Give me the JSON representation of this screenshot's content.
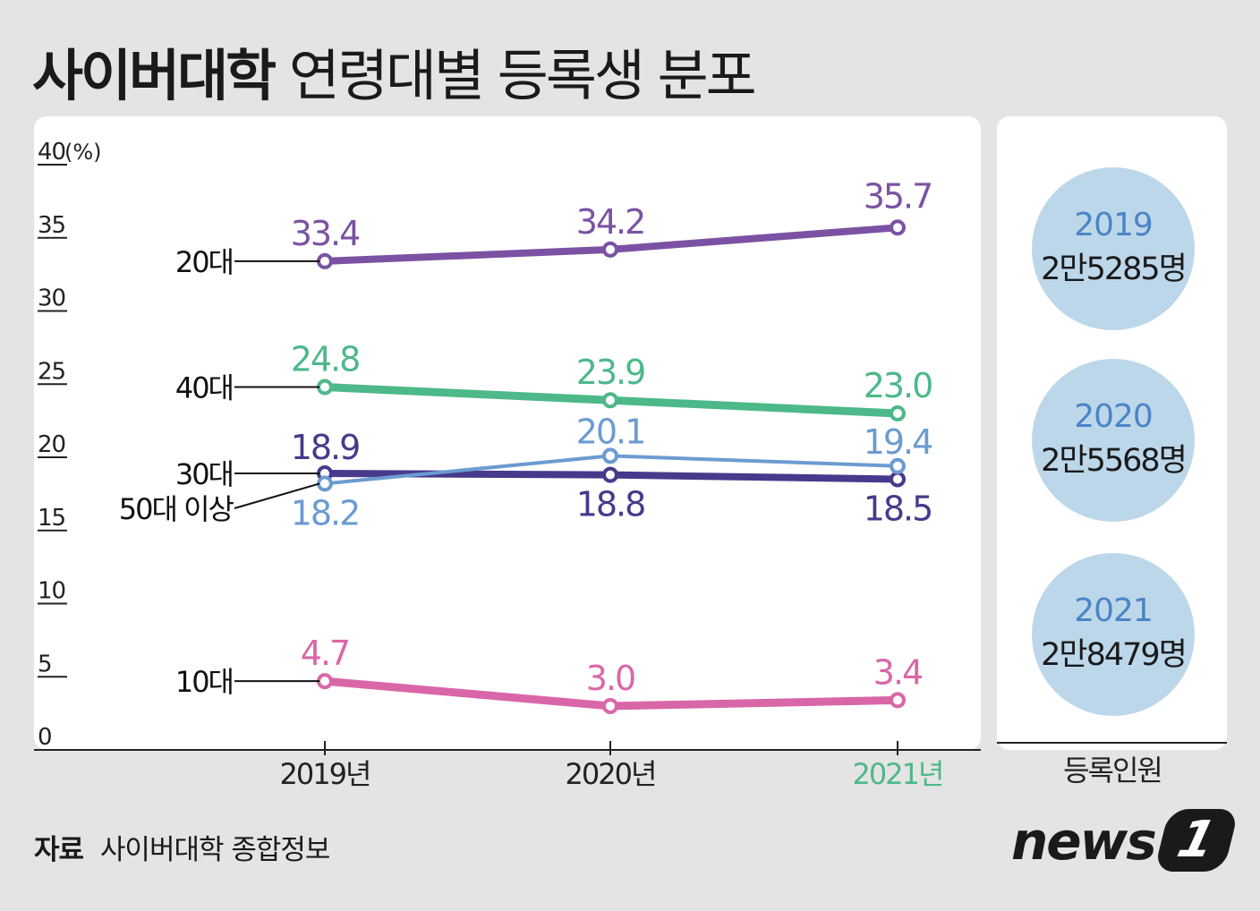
{
  "title": {
    "bold": "사이버대학",
    "normal": "연령대별 등록생 분포"
  },
  "chart_data": {
    "type": "line",
    "x": [
      "2019년",
      "2020년",
      "2021년"
    ],
    "ylim": [
      0,
      40
    ],
    "ylabel": "(%)",
    "y_ticks": [
      "0",
      "5",
      "10",
      "15",
      "20",
      "25",
      "30",
      "35",
      "40"
    ],
    "series": [
      {
        "name": "20대",
        "values": [
          33.4,
          34.2,
          35.7
        ],
        "labels": [
          "33.4",
          "34.2",
          "35.7"
        ],
        "color": "#7b52a3"
      },
      {
        "name": "40대",
        "values": [
          24.8,
          23.9,
          23.0
        ],
        "labels": [
          "24.8",
          "23.9",
          "23.0"
        ],
        "color": "#4db88a"
      },
      {
        "name": "30대",
        "values": [
          18.9,
          18.8,
          18.5
        ],
        "labels": [
          "18.9",
          "18.8",
          "18.5"
        ],
        "color": "#473a8c"
      },
      {
        "name": "50대 이상",
        "values": [
          18.2,
          20.1,
          19.4
        ],
        "labels": [
          "18.2",
          "20.1",
          "19.4"
        ],
        "color": "#6b9bd1"
      },
      {
        "name": "10대",
        "values": [
          4.7,
          3.0,
          3.4
        ],
        "labels": [
          "4.7",
          "3.0",
          "3.4"
        ],
        "color": "#d967a8"
      }
    ],
    "highlight_x_color": "#4db88a"
  },
  "side": {
    "header": "등록인원",
    "items": [
      {
        "year": "2019",
        "count": "2만5285명"
      },
      {
        "year": "2020",
        "count": "2만5568명"
      },
      {
        "year": "2021",
        "count": "2만8479명"
      }
    ],
    "year_color": "#4a85c5",
    "bubble_color": "#bdd7ea"
  },
  "source": {
    "label": "자료",
    "text": "사이버대학 종합정보"
  },
  "logo": {
    "word": "news",
    "mark": "1"
  }
}
